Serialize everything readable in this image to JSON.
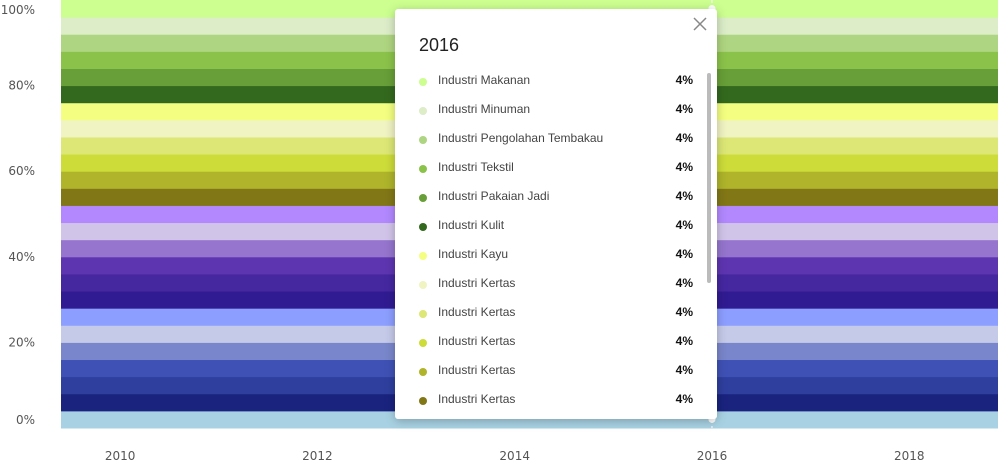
{
  "chart_data": {
    "type": "area",
    "stacking": "percent",
    "x": [
      2009,
      2010,
      2011,
      2012,
      2013,
      2014,
      2015,
      2016,
      2017,
      2018,
      2019
    ],
    "x_ticks": [
      "2010",
      "2012",
      "2014",
      "2016",
      "2018"
    ],
    "y_ticks": [
      "0%",
      "20%",
      "40%",
      "60%",
      "80%",
      "100%"
    ],
    "ylim": [
      0,
      100
    ],
    "title": "",
    "xlabel": "",
    "ylabel": "",
    "series": [
      {
        "value": 4,
        "color": "#a8d2e3"
      },
      {
        "value": 4,
        "color": "#1a237e"
      },
      {
        "value": 4,
        "color": "#2e3f9e"
      },
      {
        "value": 4,
        "color": "#3f51b5"
      },
      {
        "value": 4,
        "color": "#7986cb"
      },
      {
        "value": 4,
        "color": "#c5cae9"
      },
      {
        "value": 4,
        "color": "#8c9eff"
      },
      {
        "value": 4,
        "color": "#311b92"
      },
      {
        "value": 4,
        "color": "#4527a0"
      },
      {
        "value": 4,
        "color": "#5e35b1"
      },
      {
        "value": 4,
        "color": "#9575cd"
      },
      {
        "value": 4,
        "color": "#d1c4e9"
      },
      {
        "value": 4,
        "color": "#b388ff"
      },
      {
        "name": "Industri Kertas",
        "value": 4,
        "color": "#827717"
      },
      {
        "name": "Industri Kertas",
        "value": 4,
        "color": "#afb42b"
      },
      {
        "name": "Industri Kertas",
        "value": 4,
        "color": "#cddc39"
      },
      {
        "name": "Industri Kertas",
        "value": 4,
        "color": "#dce775"
      },
      {
        "name": "Industri Kertas",
        "value": 4,
        "color": "#f0f4c3"
      },
      {
        "name": "Industri Kayu",
        "value": 4,
        "color": "#f4ff81"
      },
      {
        "name": "Industri Kulit",
        "value": 4,
        "color": "#33691e"
      },
      {
        "name": "Industri Pakaian Jadi",
        "value": 4,
        "color": "#689f38"
      },
      {
        "name": "Industri Tekstil",
        "value": 4,
        "color": "#8bc34a"
      },
      {
        "name": "Industri Pengolahan Tembakau",
        "value": 4,
        "color": "#aed581"
      },
      {
        "name": "Industri Minuman",
        "value": 4,
        "color": "#dcedc8"
      },
      {
        "name": "Industri Makanan",
        "value": 4,
        "color": "#ccff90"
      }
    ]
  },
  "tooltip": {
    "title": "2016",
    "close_icon": "close-icon",
    "items": [
      {
        "name": "Industri Makanan",
        "value": "4%",
        "color": "#ccff90"
      },
      {
        "name": "Industri Minuman",
        "value": "4%",
        "color": "#dcedc8"
      },
      {
        "name": "Industri Pengolahan Tembakau",
        "value": "4%",
        "color": "#aed581"
      },
      {
        "name": "Industri Tekstil",
        "value": "4%",
        "color": "#8bc34a"
      },
      {
        "name": "Industri Pakaian Jadi",
        "value": "4%",
        "color": "#689f38"
      },
      {
        "name": "Industri Kulit",
        "value": "4%",
        "color": "#33691e"
      },
      {
        "name": "Industri Kayu",
        "value": "4%",
        "color": "#f4ff81"
      },
      {
        "name": "Industri Kertas",
        "value": "4%",
        "color": "#f0f4c3"
      },
      {
        "name": "Industri Kertas",
        "value": "4%",
        "color": "#dce775"
      },
      {
        "name": "Industri Kertas",
        "value": "4%",
        "color": "#cddc39"
      },
      {
        "name": "Industri Kertas",
        "value": "4%",
        "color": "#afb42b"
      },
      {
        "name": "Industri Kertas",
        "value": "4%",
        "color": "#827717"
      }
    ]
  },
  "crosshair_x": 2016
}
